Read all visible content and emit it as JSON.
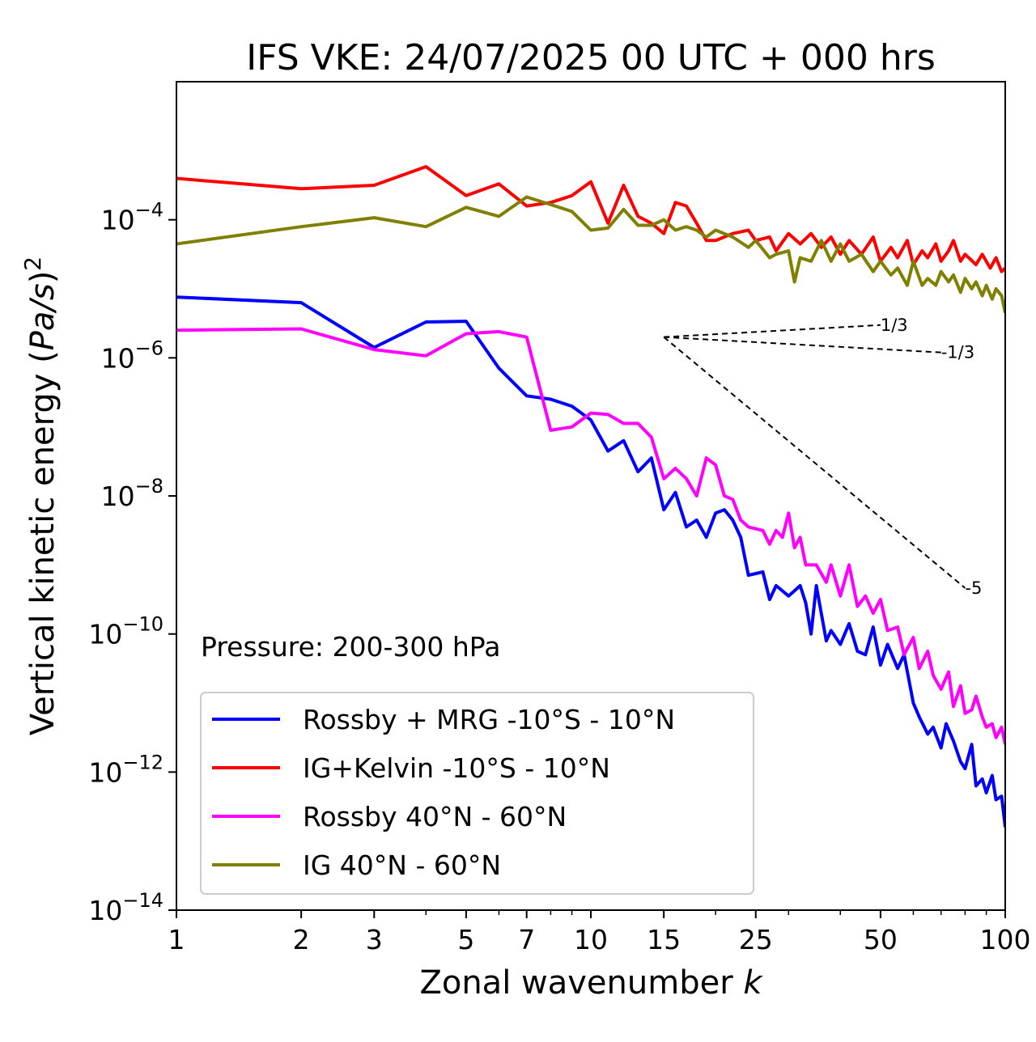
{
  "chart_data": {
    "type": "line",
    "title": "IFS VKE: 24/07/2025 00 UTC + 000 hrs",
    "xlabel_main": "Zonal wavenumber ",
    "xlabel_var": "k",
    "ylabel_main": "Vertical kinetic energy (",
    "ylabel_var": "Pa/s",
    "ylabel_close": ")",
    "ylabel_sup": "2",
    "x_scale": "log",
    "y_scale": "log",
    "xlim": [
      1,
      100
    ],
    "ylim": [
      1e-14,
      0.01
    ],
    "x_ticks": [
      {
        "value": 1,
        "label": "1"
      },
      {
        "value": 2,
        "label": "2"
      },
      {
        "value": 3,
        "label": "3"
      },
      {
        "value": 5,
        "label": "5"
      },
      {
        "value": 7,
        "label": "7"
      },
      {
        "value": 10,
        "label": "10"
      },
      {
        "value": 15,
        "label": "15"
      },
      {
        "value": 25,
        "label": "25"
      },
      {
        "value": 50,
        "label": "50"
      },
      {
        "value": 100,
        "label": "100"
      }
    ],
    "y_ticks": [
      {
        "exp": -4,
        "base": "10",
        "sup": "−4"
      },
      {
        "exp": -6,
        "base": "10",
        "sup": "−6"
      },
      {
        "exp": -8,
        "base": "10",
        "sup": "−8"
      },
      {
        "exp": -10,
        "base": "10",
        "sup": "−10"
      },
      {
        "exp": -12,
        "base": "10",
        "sup": "−12"
      },
      {
        "exp": -14,
        "base": "10",
        "sup": "−14"
      }
    ],
    "annotation": "Pressure: 200-300 hPa",
    "grid": false,
    "legend_position": "lower-left",
    "reference_slopes": [
      {
        "label": "1/3",
        "slope": 0.3333,
        "k_start": 15,
        "k_end": 50,
        "y_start": 2e-06
      },
      {
        "label": "-1/3",
        "slope": -0.3333,
        "k_start": 15,
        "k_end": 70,
        "y_start": 2e-06
      },
      {
        "label": "-5",
        "slope": -5,
        "k_start": 15,
        "k_end": 80,
        "y_start": 2e-06
      }
    ],
    "series": [
      {
        "name": "Rossby + MRG -10°S - 10°N",
        "color": "#0000ff",
        "log10_anchors": [
          [
            1,
            -5.12
          ],
          [
            2,
            -5.2
          ],
          [
            3,
            -5.85
          ],
          [
            4,
            -5.48
          ],
          [
            5,
            -5.47
          ],
          [
            6,
            -6.15
          ],
          [
            7,
            -6.55
          ],
          [
            8,
            -6.6
          ],
          [
            9,
            -6.7
          ],
          [
            10,
            -6.9
          ],
          [
            11,
            -7.35
          ],
          [
            12,
            -7.2
          ],
          [
            13,
            -7.65
          ],
          [
            14,
            -7.45
          ],
          [
            15,
            -8.2
          ],
          [
            16,
            -7.95
          ],
          [
            17,
            -8.45
          ],
          [
            18,
            -8.35
          ],
          [
            19,
            -8.6
          ],
          [
            20,
            -8.25
          ],
          [
            21,
            -8.2
          ],
          [
            22,
            -8.35
          ],
          [
            23,
            -8.6
          ],
          [
            24,
            -9.15
          ],
          [
            26,
            -9.1
          ],
          [
            27,
            -9.5
          ],
          [
            28,
            -9.3
          ],
          [
            30,
            -9.45
          ],
          [
            32,
            -9.3
          ],
          [
            33,
            -9.55
          ],
          [
            34,
            -10.0
          ],
          [
            35,
            -9.3
          ],
          [
            37,
            -10.1
          ],
          [
            38,
            -9.95
          ],
          [
            40,
            -10.15
          ],
          [
            42,
            -9.85
          ],
          [
            44,
            -10.25
          ],
          [
            46,
            -10.3
          ],
          [
            48,
            -9.9
          ],
          [
            50,
            -10.45
          ],
          [
            52,
            -10.15
          ],
          [
            55,
            -10.5
          ],
          [
            57,
            -10.3
          ],
          [
            60,
            -11.0
          ],
          [
            62,
            -11.2
          ],
          [
            65,
            -11.45
          ],
          [
            67,
            -11.35
          ],
          [
            70,
            -11.65
          ],
          [
            72,
            -11.3
          ],
          [
            75,
            -11.55
          ],
          [
            78,
            -11.85
          ],
          [
            80,
            -11.95
          ],
          [
            83,
            -11.6
          ],
          [
            85,
            -12.2
          ],
          [
            88,
            -12.1
          ],
          [
            90,
            -12.3
          ],
          [
            93,
            -12.05
          ],
          [
            95,
            -12.4
          ],
          [
            98,
            -12.35
          ],
          [
            100,
            -12.8
          ]
        ]
      },
      {
        "name": "IG+Kelvin -10°S - 10°N",
        "color": "#ff0000",
        "log10_anchors": [
          [
            1,
            -3.4
          ],
          [
            2,
            -3.55
          ],
          [
            3,
            -3.5
          ],
          [
            4,
            -3.23
          ],
          [
            5,
            -3.65
          ],
          [
            6,
            -3.48
          ],
          [
            7,
            -3.8
          ],
          [
            8,
            -3.75
          ],
          [
            9,
            -3.65
          ],
          [
            10,
            -3.45
          ],
          [
            11,
            -4.05
          ],
          [
            12,
            -3.5
          ],
          [
            13,
            -3.95
          ],
          [
            14,
            -4.05
          ],
          [
            15,
            -4.2
          ],
          [
            16,
            -3.75
          ],
          [
            17,
            -3.8
          ],
          [
            18,
            -4.05
          ],
          [
            19,
            -4.3
          ],
          [
            20,
            -4.3
          ],
          [
            22,
            -4.2
          ],
          [
            24,
            -4.15
          ],
          [
            25,
            -4.3
          ],
          [
            27,
            -4.25
          ],
          [
            28,
            -4.45
          ],
          [
            30,
            -4.2
          ],
          [
            32,
            -4.35
          ],
          [
            34,
            -4.2
          ],
          [
            36,
            -4.4
          ],
          [
            38,
            -4.25
          ],
          [
            40,
            -4.5
          ],
          [
            42,
            -4.3
          ],
          [
            45,
            -4.5
          ],
          [
            48,
            -4.25
          ],
          [
            50,
            -4.6
          ],
          [
            53,
            -4.4
          ],
          [
            55,
            -4.55
          ],
          [
            58,
            -4.3
          ],
          [
            60,
            -4.65
          ],
          [
            63,
            -4.45
          ],
          [
            65,
            -4.55
          ],
          [
            68,
            -4.35
          ],
          [
            70,
            -4.6
          ],
          [
            73,
            -4.45
          ],
          [
            75,
            -4.3
          ],
          [
            78,
            -4.6
          ],
          [
            80,
            -4.5
          ],
          [
            85,
            -4.65
          ],
          [
            88,
            -4.5
          ],
          [
            92,
            -4.7
          ],
          [
            95,
            -4.55
          ],
          [
            98,
            -4.75
          ],
          [
            100,
            -4.7
          ]
        ]
      },
      {
        "name": "Rossby 40°N - 60°N",
        "color": "#ff00ff",
        "log10_anchors": [
          [
            1,
            -5.6
          ],
          [
            2,
            -5.58
          ],
          [
            3,
            -5.88
          ],
          [
            4,
            -5.97
          ],
          [
            5,
            -5.65
          ],
          [
            6,
            -5.62
          ],
          [
            7,
            -5.7
          ],
          [
            8,
            -7.05
          ],
          [
            9,
            -7.0
          ],
          [
            10,
            -6.8
          ],
          [
            11,
            -6.82
          ],
          [
            12,
            -6.95
          ],
          [
            13,
            -6.95
          ],
          [
            14,
            -7.15
          ],
          [
            15,
            -7.75
          ],
          [
            16,
            -7.6
          ],
          [
            17,
            -7.75
          ],
          [
            18,
            -8.0
          ],
          [
            19,
            -7.45
          ],
          [
            20,
            -7.55
          ],
          [
            21,
            -8.0
          ],
          [
            22,
            -8.05
          ],
          [
            23,
            -8.35
          ],
          [
            24,
            -8.45
          ],
          [
            26,
            -8.5
          ],
          [
            27,
            -8.7
          ],
          [
            28,
            -8.5
          ],
          [
            29,
            -8.6
          ],
          [
            30,
            -8.25
          ],
          [
            31,
            -8.75
          ],
          [
            32,
            -8.6
          ],
          [
            33,
            -9.0
          ],
          [
            35,
            -9.0
          ],
          [
            37,
            -9.25
          ],
          [
            38,
            -9.0
          ],
          [
            40,
            -9.45
          ],
          [
            42,
            -9.0
          ],
          [
            44,
            -9.6
          ],
          [
            46,
            -9.45
          ],
          [
            48,
            -9.7
          ],
          [
            50,
            -9.5
          ],
          [
            52,
            -9.95
          ],
          [
            55,
            -9.9
          ],
          [
            57,
            -10.3
          ],
          [
            60,
            -10.05
          ],
          [
            62,
            -10.5
          ],
          [
            65,
            -10.25
          ],
          [
            67,
            -10.6
          ],
          [
            70,
            -10.8
          ],
          [
            73,
            -10.55
          ],
          [
            75,
            -11.05
          ],
          [
            78,
            -10.75
          ],
          [
            80,
            -11.15
          ],
          [
            83,
            -11.1
          ],
          [
            85,
            -10.9
          ],
          [
            88,
            -11.2
          ],
          [
            90,
            -11.35
          ],
          [
            93,
            -11.3
          ],
          [
            95,
            -11.5
          ],
          [
            98,
            -11.35
          ],
          [
            100,
            -11.6
          ]
        ]
      },
      {
        "name": "IG 40°N - 60°N",
        "color": "#808000",
        "log10_anchors": [
          [
            1,
            -4.35
          ],
          [
            2,
            -4.1
          ],
          [
            3,
            -3.97
          ],
          [
            4,
            -4.1
          ],
          [
            5,
            -3.82
          ],
          [
            6,
            -3.95
          ],
          [
            7,
            -3.67
          ],
          [
            8,
            -3.78
          ],
          [
            9,
            -3.88
          ],
          [
            10,
            -4.15
          ],
          [
            11,
            -4.12
          ],
          [
            12,
            -3.85
          ],
          [
            13,
            -4.08
          ],
          [
            14,
            -4.08
          ],
          [
            15,
            -4.0
          ],
          [
            16,
            -4.15
          ],
          [
            17,
            -4.1
          ],
          [
            18,
            -4.15
          ],
          [
            19,
            -4.25
          ],
          [
            20,
            -4.15
          ],
          [
            22,
            -4.25
          ],
          [
            24,
            -4.4
          ],
          [
            25,
            -4.3
          ],
          [
            27,
            -4.55
          ],
          [
            28,
            -4.5
          ],
          [
            30,
            -4.45
          ],
          [
            31,
            -4.9
          ],
          [
            32,
            -4.55
          ],
          [
            34,
            -4.6
          ],
          [
            36,
            -4.3
          ],
          [
            38,
            -4.6
          ],
          [
            40,
            -4.35
          ],
          [
            42,
            -4.6
          ],
          [
            45,
            -4.5
          ],
          [
            48,
            -4.75
          ],
          [
            50,
            -4.6
          ],
          [
            53,
            -4.8
          ],
          [
            55,
            -4.7
          ],
          [
            58,
            -4.95
          ],
          [
            60,
            -4.6
          ],
          [
            63,
            -4.95
          ],
          [
            65,
            -4.85
          ],
          [
            68,
            -4.95
          ],
          [
            70,
            -4.75
          ],
          [
            73,
            -4.9
          ],
          [
            75,
            -4.8
          ],
          [
            78,
            -5.05
          ],
          [
            80,
            -4.85
          ],
          [
            83,
            -5.0
          ],
          [
            85,
            -4.9
          ],
          [
            88,
            -5.1
          ],
          [
            90,
            -4.95
          ],
          [
            93,
            -5.15
          ],
          [
            95,
            -5.0
          ],
          [
            98,
            -5.1
          ],
          [
            100,
            -5.35
          ]
        ]
      }
    ]
  }
}
